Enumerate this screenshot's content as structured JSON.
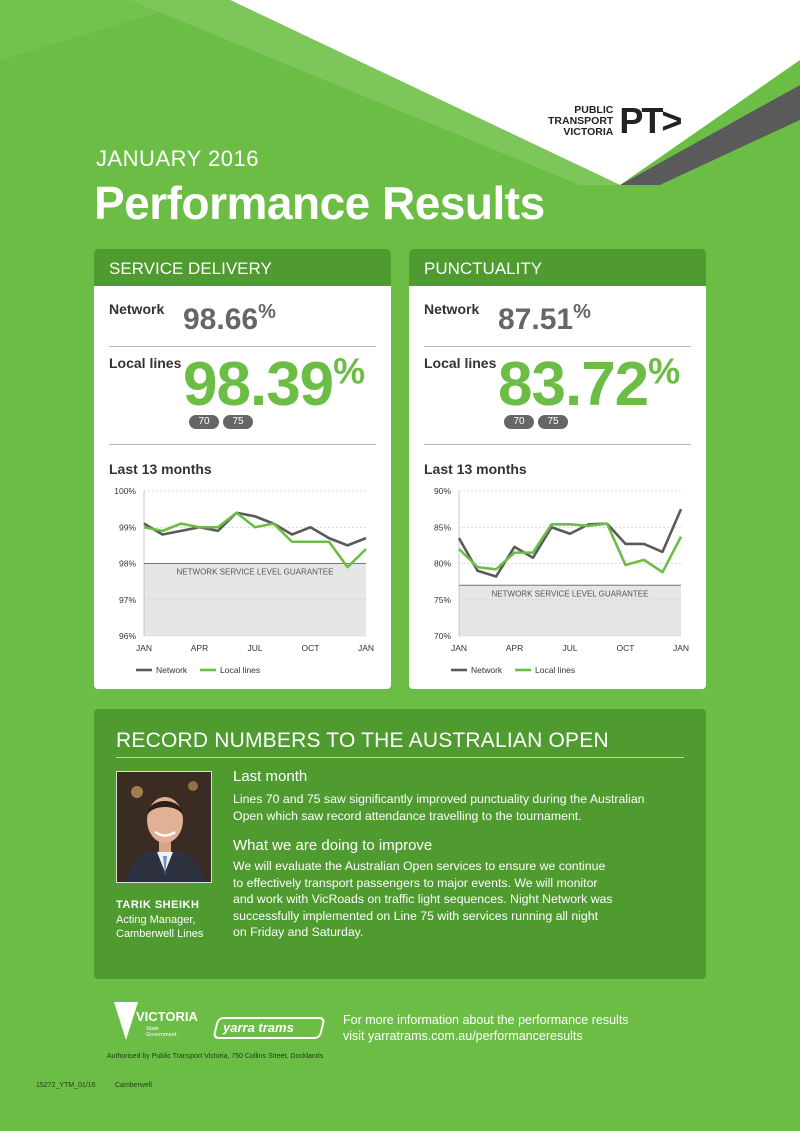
{
  "brand": {
    "pt_text_lines": [
      "PUBLIC",
      "TRANSPORT",
      "VICTORIA"
    ],
    "pt_mark": "PT>"
  },
  "header": {
    "kicker": "JANUARY 2016",
    "title": "Performance Results"
  },
  "service_delivery": {
    "heading": "SERVICE DELIVERY",
    "network_label": "Network",
    "network_value": "98.66",
    "local_label": "Local lines",
    "local_value": "98.39",
    "percent": "%",
    "routes": [
      "70",
      "75"
    ],
    "months_label": "Last 13 months"
  },
  "punctuality": {
    "heading": "PUNCTUALITY",
    "network_label": "Network",
    "network_value": "87.51",
    "local_label": "Local lines",
    "local_value": "83.72",
    "percent": "%",
    "routes": [
      "70",
      "75"
    ],
    "months_label": "Last 13 months"
  },
  "chart_data": [
    {
      "type": "line",
      "x_ticks": [
        "JAN",
        "APR",
        "JUL",
        "OCT",
        "JAN"
      ],
      "y_ticks": [
        "100%",
        "99%",
        "98%",
        "97%",
        "96%"
      ],
      "ylim": [
        96,
        100
      ],
      "guarantee_label": "NETWORK SERVICE LEVEL GUARANTEE",
      "guarantee_level": 98,
      "series": [
        {
          "name": "Network",
          "values": [
            99.1,
            98.8,
            98.9,
            99.0,
            98.9,
            99.4,
            99.3,
            99.1,
            98.8,
            99.0,
            98.7,
            98.5,
            98.7
          ]
        },
        {
          "name": "Local lines",
          "values": [
            99.0,
            98.9,
            99.1,
            99.0,
            99.0,
            99.4,
            99.0,
            99.1,
            98.6,
            98.6,
            98.6,
            97.9,
            98.4
          ]
        }
      ],
      "colors": {
        "Network": "#5a5a5a",
        "Local lines": "#6cbd45"
      }
    },
    {
      "type": "line",
      "x_ticks": [
        "JAN",
        "APR",
        "JUL",
        "OCT",
        "JAN"
      ],
      "y_ticks": [
        "90%",
        "85%",
        "80%",
        "75%",
        "70%"
      ],
      "ylim": [
        70,
        90
      ],
      "guarantee_label": "NETWORK SERVICE LEVEL GUARANTEE",
      "guarantee_level": 77,
      "series": [
        {
          "name": "Network",
          "values": [
            83.5,
            79.0,
            78.2,
            82.3,
            80.8,
            85.0,
            84.1,
            85.4,
            85.5,
            82.7,
            82.7,
            81.6,
            87.5
          ]
        },
        {
          "name": "Local lines",
          "values": [
            82.0,
            79.5,
            79.2,
            81.5,
            81.5,
            85.4,
            85.4,
            85.2,
            85.5,
            79.8,
            80.5,
            78.8,
            83.7
          ]
        }
      ],
      "colors": {
        "Network": "#5a5a5a",
        "Local lines": "#6cbd45"
      }
    }
  ],
  "record": {
    "title": "RECORD NUMBERS TO THE AUSTRALIAN OPEN",
    "person_name": "TARIK SHEIKH",
    "person_role_1": "Acting Manager,",
    "person_role_2": "Camberwell Lines",
    "last_month_heading": "Last month",
    "last_month_text_1": "Lines 70 and 75 saw significantly improved punctuality during the Australian",
    "last_month_text_2": "Open which saw record attendance travelling to the tournament.",
    "improve_heading": "What we are doing to improve",
    "improve_text_1": "We will evaluate the Australian Open services to ensure we continue",
    "improve_text_2": "to effectively transport passengers to major events. We will monitor",
    "improve_text_3": "and work with VicRoads on traffic light sequences. Night Network was",
    "improve_text_4": "successfully implemented on Line 75 with services running all night",
    "improve_text_5": "on Friday and Saturday."
  },
  "footer": {
    "vic_name": "VICTORIA",
    "vic_sub_1": "State",
    "vic_sub_2": "Government",
    "yarra_trams": "yarra trams",
    "info_1": "For more information about the performance results",
    "info_2": "visit yarratrams.com.au/performanceresults",
    "authorised": "Authorised by Public Transport Victoria, 750 Collins Street, Docklands",
    "code": "15272_YTM_01/16",
    "region": "Camberwell"
  }
}
